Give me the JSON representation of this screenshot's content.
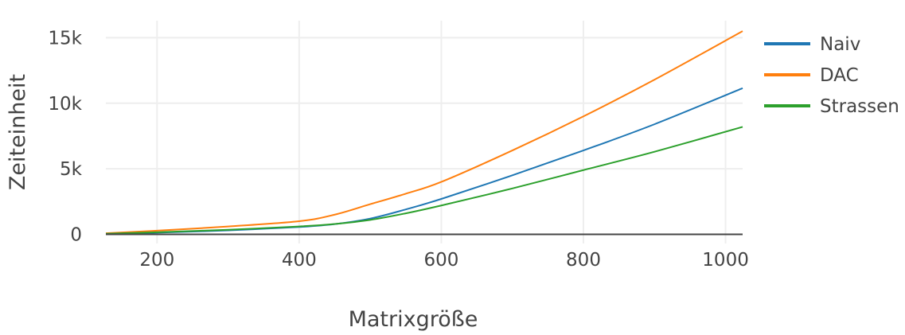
{
  "chart_data": {
    "type": "line",
    "title": "",
    "xlabel": "Matrixgröße",
    "ylabel": "Zeiteinheit",
    "xlim": [
      128,
      1024
    ],
    "ylim": [
      -700,
      16300
    ],
    "x_ticks": [
      200,
      400,
      600,
      800,
      1000
    ],
    "x_tick_labels": [
      "200",
      "400",
      "600",
      "800",
      "1000"
    ],
    "y_ticks": [
      0,
      5000,
      10000,
      15000
    ],
    "y_tick_labels": [
      "0",
      "5k",
      "10k",
      "15k"
    ],
    "grid": true,
    "legend_position": "top-right",
    "x": [
      128,
      200,
      300,
      400,
      450,
      500,
      550,
      600,
      700,
      800,
      900,
      1024
    ],
    "series": [
      {
        "name": "Naiv",
        "color": "#1f77b4",
        "values": [
          30,
          130,
          300,
          560,
          780,
          1200,
          1900,
          2700,
          4500,
          6400,
          8400,
          11150
        ]
      },
      {
        "name": "DAC",
        "color": "#ff7f0e",
        "values": [
          80,
          280,
          600,
          1000,
          1500,
          2300,
          3100,
          4000,
          6400,
          9000,
          11800,
          15500
        ]
      },
      {
        "name": "Strassen",
        "color": "#2ca02c",
        "values": [
          40,
          160,
          350,
          600,
          790,
          1100,
          1600,
          2200,
          3500,
          4900,
          6300,
          8200
        ]
      }
    ]
  }
}
